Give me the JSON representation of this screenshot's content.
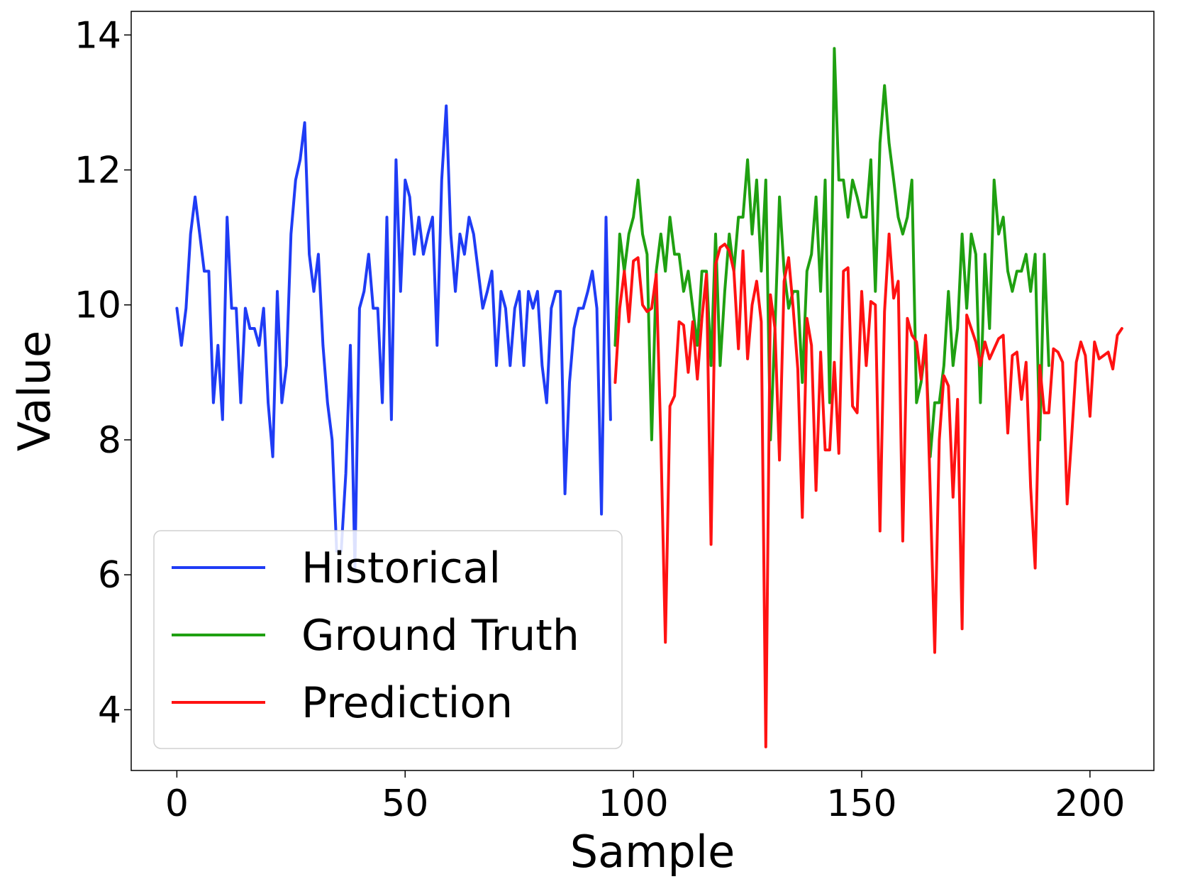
{
  "chart_data": {
    "type": "line",
    "title": "",
    "xlabel": "Sample",
    "ylabel": "Value",
    "xlim": [
      -10,
      214
    ],
    "ylim": [
      3.1,
      14.35
    ],
    "x_ticks": [
      0,
      50,
      100,
      150,
      200
    ],
    "y_ticks": [
      4,
      6,
      8,
      10,
      12,
      14
    ],
    "grid": false,
    "legend_position": "lower-left",
    "series": [
      {
        "name": "Historical",
        "color": "#1f3cf5",
        "x_start": 0,
        "values": [
          9.95,
          9.4,
          9.95,
          11.05,
          11.6,
          11.05,
          10.5,
          10.5,
          8.55,
          9.4,
          8.3,
          11.3,
          9.95,
          9.95,
          8.55,
          9.95,
          9.65,
          9.65,
          9.4,
          9.95,
          8.55,
          7.75,
          10.2,
          8.55,
          9.1,
          11.05,
          11.85,
          12.15,
          12.7,
          10.75,
          10.2,
          10.75,
          9.4,
          8.55,
          8.0,
          6.35,
          6.35,
          7.5,
          9.4,
          6.1,
          9.95,
          10.2,
          10.75,
          9.95,
          9.95,
          8.55,
          11.3,
          8.3,
          12.15,
          10.2,
          11.85,
          11.6,
          10.75,
          11.3,
          10.75,
          11.05,
          11.3,
          9.4,
          11.85,
          12.95,
          11.05,
          10.2,
          11.05,
          10.75,
          11.3,
          11.05,
          10.5,
          9.95,
          10.2,
          10.5,
          9.1,
          10.2,
          9.95,
          9.1,
          9.95,
          10.2,
          9.1,
          10.2,
          9.95,
          10.2,
          9.1,
          8.55,
          9.95,
          10.2,
          10.2,
          7.2,
          8.85,
          9.65,
          9.95,
          9.95,
          10.2,
          10.5,
          9.95,
          6.9,
          11.3,
          8.3
        ]
      },
      {
        "name": "Ground Truth",
        "color": "#1fa011",
        "x_start": 96,
        "values": [
          9.4,
          11.05,
          10.5,
          11.05,
          11.3,
          11.85,
          11.05,
          10.75,
          8.0,
          10.5,
          11.05,
          10.5,
          11.3,
          10.75,
          10.75,
          10.2,
          10.5,
          9.95,
          9.4,
          10.5,
          10.5,
          9.1,
          11.05,
          9.1,
          10.2,
          11.05,
          10.5,
          11.3,
          11.3,
          12.15,
          11.05,
          11.85,
          10.5,
          11.85,
          8.0,
          9.65,
          11.6,
          10.5,
          9.95,
          10.2,
          10.2,
          8.85,
          10.5,
          10.75,
          11.6,
          10.2,
          11.85,
          8.55,
          13.8,
          11.85,
          11.85,
          11.3,
          11.85,
          11.6,
          11.3,
          11.3,
          12.15,
          10.2,
          12.4,
          13.25,
          12.4,
          11.85,
          11.3,
          11.05,
          11.3,
          11.85,
          8.55,
          8.85,
          9.4,
          7.75,
          8.55,
          8.55,
          9.1,
          10.2,
          9.1,
          9.65,
          11.05,
          9.95,
          11.05,
          10.75,
          8.55,
          10.75,
          9.65,
          11.85,
          11.05,
          11.3,
          10.5,
          10.2,
          10.5,
          10.5,
          10.75,
          10.2,
          10.75,
          8.0,
          10.75,
          9.1
        ]
      },
      {
        "name": "Prediction",
        "color": "#ff1212",
        "x_start": 96,
        "values": [
          8.85,
          9.95,
          10.5,
          9.75,
          10.65,
          10.7,
          10.0,
          9.9,
          9.95,
          10.45,
          8.0,
          5.0,
          8.5,
          8.65,
          9.75,
          9.7,
          9.0,
          9.75,
          8.9,
          9.8,
          10.45,
          6.45,
          10.6,
          10.85,
          10.9,
          10.8,
          10.5,
          9.35,
          10.8,
          9.2,
          10.0,
          10.35,
          9.75,
          3.45,
          10.15,
          9.65,
          7.7,
          10.35,
          10.7,
          9.95,
          9.05,
          6.85,
          9.8,
          9.4,
          7.25,
          9.3,
          7.85,
          7.85,
          9.15,
          7.8,
          10.5,
          10.55,
          8.5,
          8.4,
          10.2,
          9.1,
          10.05,
          10.0,
          6.65,
          9.9,
          11.05,
          10.1,
          10.35,
          6.5,
          9.8,
          9.55,
          9.45,
          8.9,
          9.55,
          7.25,
          4.85,
          8.0,
          8.95,
          8.8,
          7.15,
          8.6,
          5.2,
          9.85,
          9.65,
          9.45,
          9.1,
          9.45,
          9.2,
          9.35,
          9.5,
          9.55,
          8.1,
          9.25,
          9.3,
          8.6,
          9.15,
          7.3,
          6.1,
          9.1,
          8.4,
          8.4,
          9.35,
          9.3,
          9.15,
          7.05,
          8.05,
          9.15,
          9.45,
          9.25,
          8.35,
          9.45,
          9.2,
          9.25,
          9.3,
          9.05,
          9.55,
          9.65
        ]
      }
    ]
  }
}
